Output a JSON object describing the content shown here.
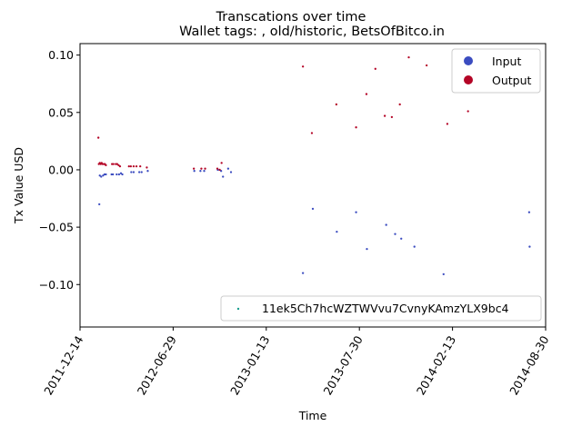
{
  "chart_data": {
    "type": "scatter",
    "title": "Transcations over time",
    "subtitle": "Wallet tags: , old/historic, BetsOfBitco.in",
    "xlabel": "Time",
    "ylabel": "Tx Value USD",
    "x_ticks": [
      "2011-12-14",
      "2012-06-29",
      "2013-01-13",
      "2013-07-30",
      "2014-02-13",
      "2014-08-30"
    ],
    "y_ticks": [
      "0.10",
      "0.05",
      "0.00",
      "−0.05",
      "−0.10"
    ],
    "xlim": [
      "2011-12-14",
      "2014-08-30"
    ],
    "ylim": [
      -0.137,
      0.11
    ],
    "grid": false,
    "colors": {
      "input": "#3b4cc0",
      "output": "#b40426",
      "address": "#1a9e8f"
    },
    "legend_top": {
      "placement": "top-right",
      "entries": [
        "Input",
        "Output"
      ]
    },
    "legend_bottom": {
      "placement": "lower-right",
      "entries": [
        "11ek5Ch7hcWZTWVvu7CvnyKAmzYLX9bc4"
      ]
    },
    "series": [
      {
        "name": "Input",
        "points": [
          {
            "x": "2012-01-24",
            "y": -0.03
          },
          {
            "x": "2012-01-25",
            "y": -0.005
          },
          {
            "x": "2012-01-28",
            "y": -0.006
          },
          {
            "x": "2012-02-01",
            "y": -0.005
          },
          {
            "x": "2012-02-04",
            "y": -0.004
          },
          {
            "x": "2012-02-07",
            "y": -0.004
          },
          {
            "x": "2012-02-19",
            "y": -0.004
          },
          {
            "x": "2012-02-22",
            "y": -0.004
          },
          {
            "x": "2012-03-01",
            "y": -0.004
          },
          {
            "x": "2012-03-06",
            "y": -0.004
          },
          {
            "x": "2012-03-10",
            "y": -0.003
          },
          {
            "x": "2012-03-13",
            "y": -0.004
          },
          {
            "x": "2012-04-01",
            "y": -0.002
          },
          {
            "x": "2012-04-06",
            "y": -0.002
          },
          {
            "x": "2012-04-18",
            "y": -0.002
          },
          {
            "x": "2012-04-23",
            "y": -0.002
          },
          {
            "x": "2012-05-06",
            "y": -0.001
          },
          {
            "x": "2012-08-13",
            "y": -0.001
          },
          {
            "x": "2012-08-26",
            "y": -0.001
          },
          {
            "x": "2012-09-03",
            "y": -0.001
          },
          {
            "x": "2012-10-02",
            "y": 0.0
          },
          {
            "x": "2012-10-09",
            "y": -0.001
          },
          {
            "x": "2012-10-13",
            "y": -0.006
          },
          {
            "x": "2012-10-24",
            "y": 0.001
          },
          {
            "x": "2012-10-30",
            "y": -0.002
          },
          {
            "x": "2013-04-01",
            "y": -0.09
          },
          {
            "x": "2013-04-22",
            "y": -0.034
          },
          {
            "x": "2013-06-12",
            "y": -0.054
          },
          {
            "x": "2013-07-23",
            "y": -0.037
          },
          {
            "x": "2013-08-15",
            "y": -0.069
          },
          {
            "x": "2013-09-25",
            "y": -0.048
          },
          {
            "x": "2013-10-14",
            "y": -0.056
          },
          {
            "x": "2013-10-27",
            "y": -0.06
          },
          {
            "x": "2013-11-24",
            "y": -0.067
          },
          {
            "x": "2014-01-25",
            "y": -0.091
          },
          {
            "x": "2014-07-26",
            "y": -0.037
          },
          {
            "x": "2014-07-27",
            "y": -0.067
          }
        ]
      },
      {
        "name": "Output",
        "points": [
          {
            "x": "2012-01-22",
            "y": 0.028
          },
          {
            "x": "2012-01-23",
            "y": 0.005
          },
          {
            "x": "2012-01-25",
            "y": 0.006
          },
          {
            "x": "2012-01-27",
            "y": 0.005
          },
          {
            "x": "2012-01-29",
            "y": 0.006
          },
          {
            "x": "2012-01-31",
            "y": 0.005
          },
          {
            "x": "2012-02-03",
            "y": 0.005
          },
          {
            "x": "2012-02-05",
            "y": 0.005
          },
          {
            "x": "2012-02-07",
            "y": 0.004
          },
          {
            "x": "2012-02-20",
            "y": 0.005
          },
          {
            "x": "2012-02-23",
            "y": 0.005
          },
          {
            "x": "2012-02-28",
            "y": 0.005
          },
          {
            "x": "2012-03-02",
            "y": 0.005
          },
          {
            "x": "2012-03-05",
            "y": 0.004
          },
          {
            "x": "2012-03-08",
            "y": 0.003
          },
          {
            "x": "2012-03-27",
            "y": 0.003
          },
          {
            "x": "2012-03-31",
            "y": 0.003
          },
          {
            "x": "2012-04-06",
            "y": 0.003
          },
          {
            "x": "2012-04-12",
            "y": 0.003
          },
          {
            "x": "2012-04-20",
            "y": 0.003
          },
          {
            "x": "2012-05-04",
            "y": 0.002
          },
          {
            "x": "2012-08-12",
            "y": 0.001
          },
          {
            "x": "2012-08-28",
            "y": 0.001
          },
          {
            "x": "2012-09-05",
            "y": 0.001
          },
          {
            "x": "2012-10-01",
            "y": 0.001
          },
          {
            "x": "2012-10-06",
            "y": 0.0
          },
          {
            "x": "2012-10-10",
            "y": 0.006
          },
          {
            "x": "2013-04-01",
            "y": 0.09
          },
          {
            "x": "2013-04-20",
            "y": 0.032
          },
          {
            "x": "2013-06-11",
            "y": 0.057
          },
          {
            "x": "2013-07-23",
            "y": 0.037
          },
          {
            "x": "2013-08-14",
            "y": 0.066
          },
          {
            "x": "2013-09-02",
            "y": 0.088
          },
          {
            "x": "2013-09-22",
            "y": 0.047
          },
          {
            "x": "2013-10-07",
            "y": 0.046
          },
          {
            "x": "2013-10-24",
            "y": 0.057
          },
          {
            "x": "2013-11-12",
            "y": 0.098
          },
          {
            "x": "2013-12-20",
            "y": 0.091
          },
          {
            "x": "2014-02-02",
            "y": 0.04
          },
          {
            "x": "2014-03-18",
            "y": 0.051
          }
        ]
      }
    ]
  }
}
